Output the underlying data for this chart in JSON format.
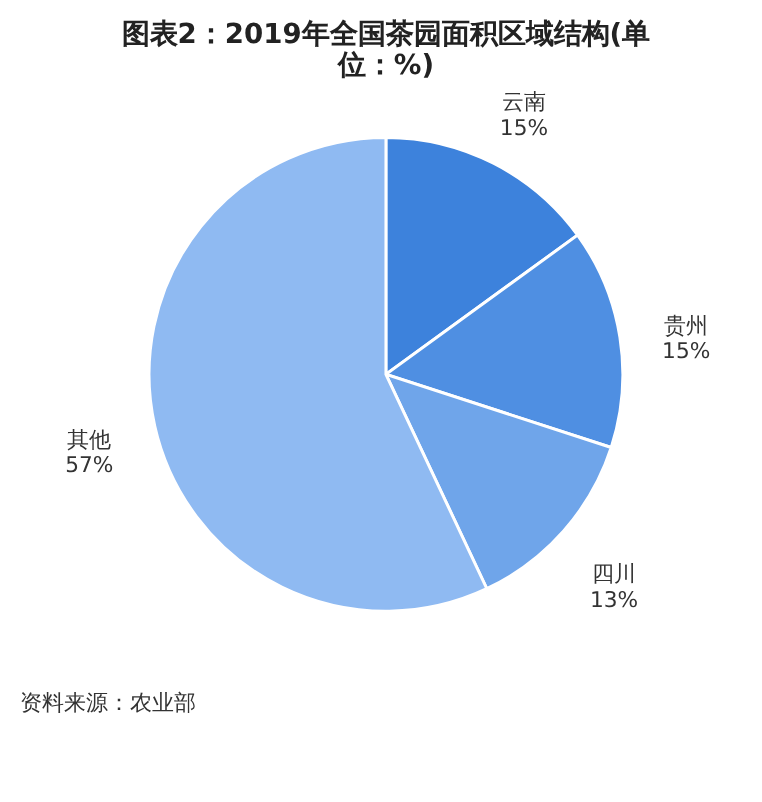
{
  "chart_data": {
    "type": "pie",
    "title": "图表2：2019年全国茶园面积区域结构(单位：%)",
    "categories": [
      "云南",
      "贵州",
      "四川",
      "其他"
    ],
    "values": [
      15,
      15,
      13,
      57
    ],
    "value_labels": [
      "15%",
      "15%",
      "13%",
      "57%"
    ],
    "colors": [
      "#3d82dc",
      "#4f8fe2",
      "#6fa5ea",
      "#8fbaf2"
    ],
    "legend": false,
    "annotations": [
      "资料来源：农业部"
    ]
  }
}
